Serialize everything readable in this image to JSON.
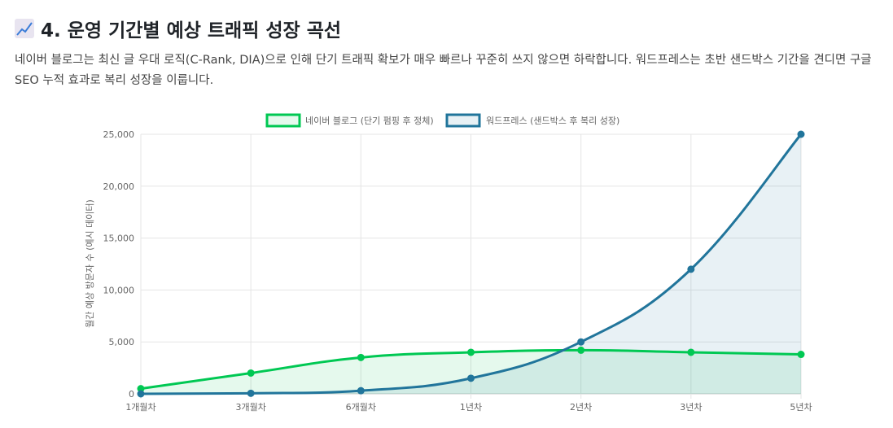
{
  "header": {
    "icon": "chart-increasing-icon",
    "title": "4. 운영 기간별 예상 트래픽 성장 곡선",
    "description": "네이버 블로그는 최신 글 우대 로직(C-Rank, DIA)으로 인해 단기 트래픽 확보가 매우 빠르나 꾸준히 쓰지 않으면 하락합니다. 워드프레스는 초반 샌드박스 기간을 견디면 구글 SEO 누적 효과로 복리 성장을 이룹니다."
  },
  "chart_data": {
    "type": "area",
    "categories": [
      "1개월차",
      "3개월차",
      "6개월차",
      "1년차",
      "2년차",
      "3년차",
      "5년차"
    ],
    "series": [
      {
        "name": "네이버 블로그 (단기 펌핑 후 정체)",
        "values": [
          500,
          2000,
          3500,
          4000,
          4200,
          4000,
          3800
        ],
        "color": "#00c853",
        "fill": "rgba(0,200,83,0.1)"
      },
      {
        "name": "워드프레스 (샌드박스 후 복리 성장)",
        "values": [
          0,
          50,
          300,
          1500,
          5000,
          12000,
          25000
        ],
        "color": "#21759b",
        "fill": "rgba(33,117,155,0.1)"
      }
    ],
    "ylabel": "월간 예상 방문자 수 (예시 데이터)",
    "ylim": [
      0,
      25000
    ],
    "yticks": [
      "0",
      "5,000",
      "10,000",
      "15,000",
      "20,000",
      "25,000"
    ],
    "grid": true,
    "legend": "top"
  }
}
